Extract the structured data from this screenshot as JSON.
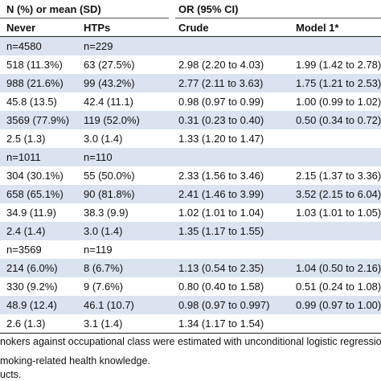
{
  "header": {
    "group1": "N (%) or mean (SD)",
    "group2": "OR (95% CI)",
    "col_never": "Never",
    "col_htps": "HTPs",
    "col_crude": "Crude",
    "col_model1": "Model 1*"
  },
  "rows": [
    {
      "never": "n=4580",
      "htps": "n=229",
      "crude": "",
      "model1": ""
    },
    {
      "never": "518 (11.3%)",
      "htps": "63 (27.5%)",
      "crude": "2.98 (2.20 to 4.03)",
      "model1": "1.99 (1.42 to 2.78)"
    },
    {
      "never": "988 (21.6%)",
      "htps": "99 (43.2%)",
      "crude": "2.77 (2.11 to 3.63)",
      "model1": "1.75 (1.21 to 2.53)"
    },
    {
      "never": "45.8 (13.5)",
      "htps": "42.4 (11.1)",
      "crude": "0.98 (0.97 to 0.99)",
      "model1": "1.00 (0.99 to 1.02)"
    },
    {
      "never": "3569 (77.9%)",
      "htps": "119 (52.0%)",
      "crude": "0.31 (0.23 to 0.40)",
      "model1": "0.50 (0.34 to 0.72)"
    },
    {
      "never": "2.5 (1.3)",
      "htps": "3.0 (1.4)",
      "crude": "1.33 (1.20 to 1.47)",
      "model1": ""
    },
    {
      "never": "n=1011",
      "htps": "n=110",
      "crude": "",
      "model1": ""
    },
    {
      "never": "304 (30.1%)",
      "htps": "55 (50.0%)",
      "crude": "2.33 (1.56 to 3.46)",
      "model1": "2.15 (1.37 to 3.36)"
    },
    {
      "never": "658 (65.1%)",
      "htps": "90 (81.8%)",
      "crude": "2.41 (1.46 to 3.99)",
      "model1": "3.52 (2.15 to 6.04)"
    },
    {
      "never": "34.9 (11.9)",
      "htps": "38.3 (9.9)",
      "crude": "1.02 (1.01 to 1.04)",
      "model1": "1.03 (1.01 to 1.05)"
    },
    {
      "never": "2.4 (1.4)",
      "htps": "3.0 (1.4)",
      "crude": "1.35 (1.17 to 1.55)",
      "model1": ""
    },
    {
      "never": "n=3569",
      "htps": "n=119",
      "crude": "",
      "model1": ""
    },
    {
      "never": "214 (6.0%)",
      "htps": "8 (6.7%)",
      "crude": "1.13 (0.54 to 2.35)",
      "model1": "1.04 (0.50 to 2.16)"
    },
    {
      "never": "330 (9.2%)",
      "htps": "9 (7.6%)",
      "crude": "0.80 (0.40 to 1.58)",
      "model1": "0.51 (0.24 to 1.08)"
    },
    {
      "never": "48.9 (12.4)",
      "htps": "46.1 (10.7)",
      "crude": "0.98 (0.97 to 0.997)",
      "model1": "0.99 (0.97 to 1.00)"
    },
    {
      "never": "2.6 (1.3)",
      "htps": "3.1 (1.4)",
      "crude": "1.34 (1.17 to 1.54)",
      "model1": ""
    }
  ],
  "footnotes": [
    "nokers against occupational class were estimated with unconditional logistic regression",
    "moking-related health knowledge.",
    "ucts."
  ],
  "colors": {
    "shade": "#dbe3f1",
    "text": "#111111",
    "rule": "#222222"
  }
}
